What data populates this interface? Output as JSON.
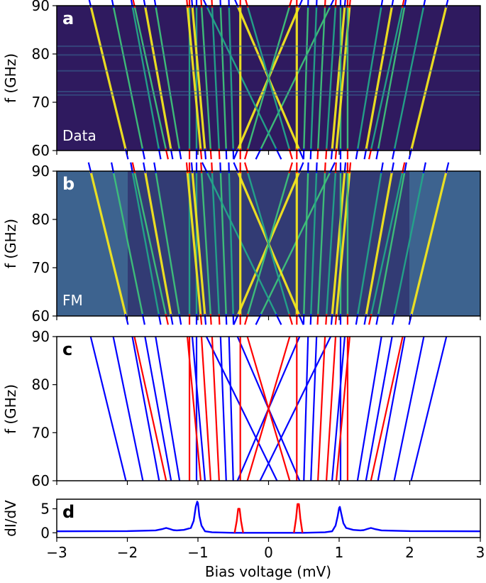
{
  "figure": {
    "x_axis_label": "Bias voltage (mV)",
    "x_ticks": [
      "−3",
      "−2",
      "−1",
      "0",
      "1",
      "2",
      "3"
    ]
  },
  "chart_data": [
    {
      "type": "heatmap",
      "panel": "a",
      "inset_label": "Data",
      "ylabel": "f (GHz)",
      "xlim": [
        -3,
        3
      ],
      "ylim": [
        60,
        90
      ],
      "y_ticks": [
        "60",
        "70",
        "80",
        "90"
      ],
      "colormap": "viridis",
      "overlay_line_colors": [
        "#ff0000",
        "#0000ff"
      ]
    },
    {
      "type": "heatmap",
      "panel": "b",
      "inset_label": "FM",
      "ylabel": "f (GHz)",
      "xlim": [
        -3,
        3
      ],
      "ylim": [
        60,
        90
      ],
      "y_ticks": [
        "60",
        "70",
        "80",
        "90"
      ],
      "colormap": "viridis",
      "overlay_line_colors": [
        "#ff0000",
        "#0000ff"
      ]
    },
    {
      "type": "line",
      "panel": "c",
      "ylabel": "f (GHz)",
      "xlim": [
        -3,
        3
      ],
      "ylim": [
        60,
        90
      ],
      "y_ticks": [
        "60",
        "70",
        "80",
        "90"
      ],
      "line_series": [
        {
          "color": "#0000ff",
          "points": [
            [
              -2.02,
              60
            ],
            [
              -2.52,
              90
            ]
          ]
        },
        {
          "color": "#0000ff",
          "points": [
            [
              -1.78,
              60
            ],
            [
              -2.2,
              90
            ]
          ]
        },
        {
          "color": "#0000ff",
          "points": [
            [
              -1.55,
              60
            ],
            [
              -1.93,
              90
            ]
          ]
        },
        {
          "color": "#0000ff",
          "points": [
            [
              -1.38,
              60
            ],
            [
              -1.75,
              90
            ]
          ]
        },
        {
          "color": "#0000ff",
          "points": [
            [
              -1.26,
              60
            ],
            [
              -1.6,
              90
            ]
          ]
        },
        {
          "color": "#0000ff",
          "points": [
            [
              -1.02,
              60
            ],
            [
              -1.02,
              90
            ]
          ]
        },
        {
          "color": "#0000ff",
          "points": [
            [
              -0.9,
              60
            ],
            [
              -1.08,
              90
            ]
          ]
        },
        {
          "color": "#0000ff",
          "points": [
            [
              -0.6,
              60
            ],
            [
              -0.68,
              90
            ]
          ]
        },
        {
          "color": "#0000ff",
          "points": [
            [
              -0.5,
              60
            ],
            [
              -0.56,
              90
            ]
          ]
        },
        {
          "color": "#0000ff",
          "points": [
            [
              -0.44,
              60
            ],
            [
              0.44,
              90
            ]
          ]
        },
        {
          "color": "#0000ff",
          "points": [
            [
              -0.12,
              60
            ],
            [
              0.88,
              90
            ]
          ]
        },
        {
          "color": "#0000ff",
          "points": [
            [
              0.12,
              60
            ],
            [
              -0.88,
              90
            ]
          ]
        },
        {
          "color": "#0000ff",
          "points": [
            [
              0.44,
              60
            ],
            [
              -0.44,
              90
            ]
          ]
        },
        {
          "color": "#0000ff",
          "points": [
            [
              0.5,
              60
            ],
            [
              0.56,
              90
            ]
          ]
        },
        {
          "color": "#0000ff",
          "points": [
            [
              0.6,
              60
            ],
            [
              0.68,
              90
            ]
          ]
        },
        {
          "color": "#0000ff",
          "points": [
            [
              0.9,
              60
            ],
            [
              1.08,
              90
            ]
          ]
        },
        {
          "color": "#0000ff",
          "points": [
            [
              1.02,
              60
            ],
            [
              1.02,
              90
            ]
          ]
        },
        {
          "color": "#0000ff",
          "points": [
            [
              1.26,
              60
            ],
            [
              1.6,
              90
            ]
          ]
        },
        {
          "color": "#0000ff",
          "points": [
            [
              1.38,
              60
            ],
            [
              1.75,
              90
            ]
          ]
        },
        {
          "color": "#0000ff",
          "points": [
            [
              1.55,
              60
            ],
            [
              1.93,
              90
            ]
          ]
        },
        {
          "color": "#0000ff",
          "points": [
            [
              1.78,
              60
            ],
            [
              2.2,
              90
            ]
          ]
        },
        {
          "color": "#0000ff",
          "points": [
            [
              2.02,
              60
            ],
            [
              2.52,
              90
            ]
          ]
        },
        {
          "color": "#ff0000",
          "points": [
            [
              -1.45,
              60
            ],
            [
              -1.9,
              90
            ]
          ]
        },
        {
          "color": "#ff0000",
          "points": [
            [
              -1.12,
              60
            ],
            [
              -1.12,
              90
            ]
          ]
        },
        {
          "color": "#ff0000",
          "points": [
            [
              -0.96,
              60
            ],
            [
              -1.15,
              90
            ]
          ]
        },
        {
          "color": "#ff0000",
          "points": [
            [
              -0.82,
              60
            ],
            [
              -0.95,
              90
            ]
          ]
        },
        {
          "color": "#ff0000",
          "points": [
            [
              -0.7,
              60
            ],
            [
              -0.8,
              90
            ]
          ]
        },
        {
          "color": "#ff0000",
          "points": [
            [
              -0.4,
              60
            ],
            [
              -0.4,
              90
            ]
          ]
        },
        {
          "color": "#ff0000",
          "points": [
            [
              -0.3,
              60
            ],
            [
              0.3,
              90
            ]
          ]
        },
        {
          "color": "#ff0000",
          "points": [
            [
              0.3,
              60
            ],
            [
              -0.3,
              90
            ]
          ]
        },
        {
          "color": "#ff0000",
          "points": [
            [
              0.4,
              60
            ],
            [
              0.4,
              90
            ]
          ]
        },
        {
          "color": "#ff0000",
          "points": [
            [
              0.7,
              60
            ],
            [
              0.8,
              90
            ]
          ]
        },
        {
          "color": "#ff0000",
          "points": [
            [
              0.82,
              60
            ],
            [
              0.95,
              90
            ]
          ]
        },
        {
          "color": "#ff0000",
          "points": [
            [
              0.96,
              60
            ],
            [
              1.15,
              90
            ]
          ]
        },
        {
          "color": "#ff0000",
          "points": [
            [
              1.12,
              60
            ],
            [
              1.12,
              90
            ]
          ]
        },
        {
          "color": "#ff0000",
          "points": [
            [
              1.45,
              60
            ],
            [
              1.9,
              90
            ]
          ]
        }
      ]
    },
    {
      "type": "line",
      "panel": "d",
      "ylabel": "dI/dV",
      "xlim": [
        -3,
        3
      ],
      "ylim": [
        -1,
        7
      ],
      "y_ticks": [
        "0",
        "5"
      ],
      "series": [
        {
          "color": "#0000ff",
          "x": [
            -3.0,
            -2.0,
            -1.6,
            -1.5,
            -1.45,
            -1.4,
            -1.35,
            -1.3,
            -1.2,
            -1.1,
            -1.06,
            -1.03,
            -1.01,
            -1.0,
            -0.98,
            -0.95,
            -0.9,
            -0.8,
            -0.5,
            0.0,
            0.5,
            0.8,
            0.9,
            0.95,
            0.98,
            1.0,
            1.01,
            1.03,
            1.06,
            1.1,
            1.2,
            1.3,
            1.35,
            1.4,
            1.45,
            1.5,
            1.6,
            2.0,
            3.0
          ],
          "y": [
            0.3,
            0.35,
            0.5,
            0.8,
            1.0,
            0.8,
            0.55,
            0.5,
            0.6,
            1.0,
            2.5,
            5.5,
            6.5,
            6.2,
            3.5,
            1.5,
            0.3,
            0.1,
            0.0,
            0.0,
            0.0,
            0.1,
            0.3,
            1.5,
            3.5,
            5.2,
            5.4,
            4.0,
            2.0,
            1.0,
            0.6,
            0.5,
            0.55,
            0.8,
            1.0,
            0.8,
            0.5,
            0.35,
            0.3
          ]
        },
        {
          "color": "#ff0000",
          "x": [
            -0.48,
            -0.45,
            -0.43,
            -0.41,
            -0.39,
            -0.36
          ],
          "y": [
            0.0,
            2.5,
            5.0,
            5.0,
            2.5,
            0.0
          ]
        },
        {
          "color": "#ff0000",
          "x": [
            0.36,
            0.39,
            0.41,
            0.43,
            0.45,
            0.48
          ],
          "y": [
            0.0,
            3.0,
            6.0,
            6.0,
            3.0,
            0.0
          ]
        }
      ]
    }
  ]
}
